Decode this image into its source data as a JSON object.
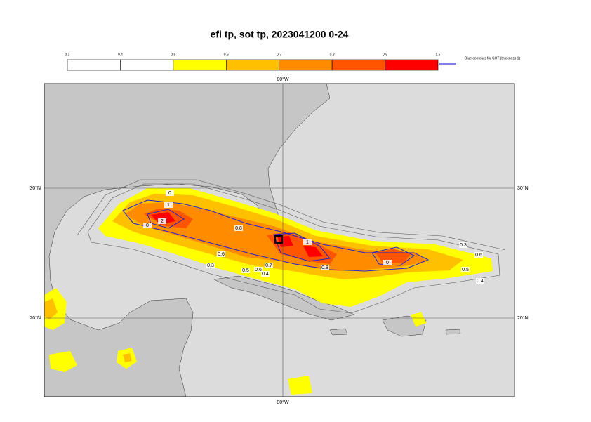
{
  "title": "efi tp, sot tp, 2023041200 0-24",
  "colorbar": {
    "ticks": [
      0.3,
      0.4,
      0.5,
      0.6,
      0.7,
      0.8,
      0.9,
      1.5
    ],
    "colors": [
      "#ffffff",
      "#ffffff",
      "#ffff00",
      "#ffc000",
      "#ff8c00",
      "#ff5500",
      "#ff0000"
    ]
  },
  "legend": "Blue contours for SOT (thickness 1)",
  "axes": {
    "top": "80°W",
    "bottom": "80°W",
    "left": [
      "30°N",
      "20°N"
    ],
    "right": [
      "30°N",
      "20°N"
    ]
  },
  "contour_labels": [
    "0",
    "1",
    "2",
    "0",
    "0.8",
    "1",
    "0.6",
    "0.8",
    "0",
    "0.3",
    "0.6",
    "0.5",
    "0.6",
    "0.7",
    "0.4",
    "0.3",
    "0.5",
    "0.4"
  ]
}
